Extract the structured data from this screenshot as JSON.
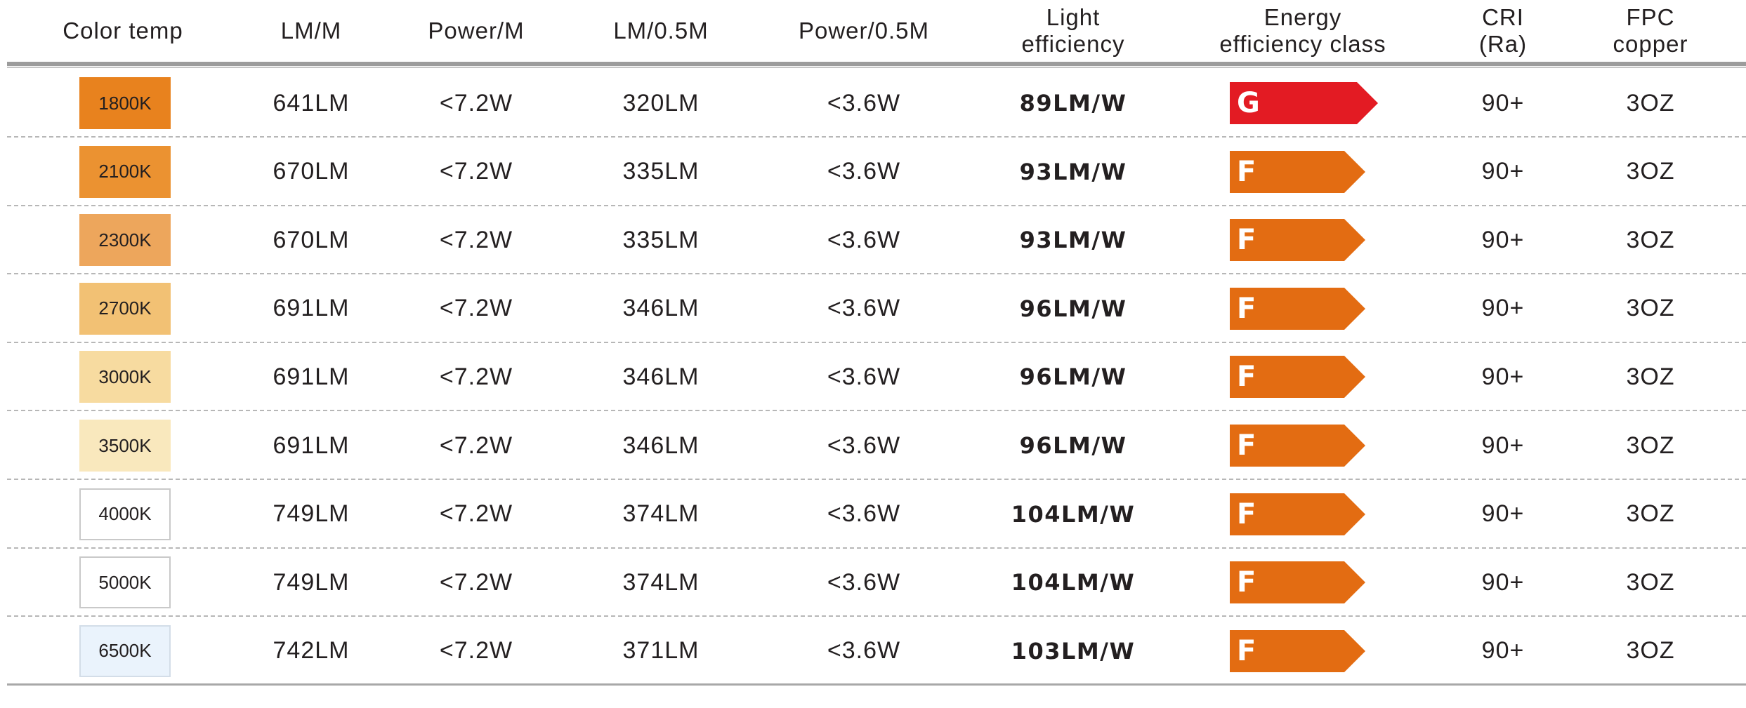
{
  "headers": {
    "color_temp": [
      "Color temp"
    ],
    "lm_m": [
      "LM/M"
    ],
    "power_m": [
      "Power/M"
    ],
    "lm_05m": [
      "LM/0.5M"
    ],
    "power_05m": [
      "Power/0.5M"
    ],
    "light_efficiency": [
      "Light",
      "efficiency"
    ],
    "energy_class": [
      "Energy",
      "efficiency class"
    ],
    "cri": [
      "CRI",
      "(Ra)"
    ],
    "fpc": [
      "FPC",
      "copper"
    ]
  },
  "rows": [
    {
      "temp": "1800K",
      "swatch": "#e8821e",
      "border": "",
      "lm_m": "641LM",
      "power_m": "<7.2W",
      "lm_05m": "320LM",
      "power_05m": "<3.6W",
      "efficiency": "89LM/W",
      "class": "G",
      "class_color": "#e31b23",
      "cri": "90+",
      "fpc": "3OZ"
    },
    {
      "temp": "2100K",
      "swatch": "#eb9231",
      "border": "",
      "lm_m": "670LM",
      "power_m": "<7.2W",
      "lm_05m": "335LM",
      "power_05m": "<3.6W",
      "efficiency": "93LM/W",
      "class": "F",
      "class_color": "#e36c12",
      "cri": "90+",
      "fpc": "3OZ"
    },
    {
      "temp": "2300K",
      "swatch": "#eda65c",
      "border": "",
      "lm_m": "670LM",
      "power_m": "<7.2W",
      "lm_05m": "335LM",
      "power_05m": "<3.6W",
      "efficiency": "93LM/W",
      "class": "F",
      "class_color": "#e36c12",
      "cri": "90+",
      "fpc": "3OZ"
    },
    {
      "temp": "2700K",
      "swatch": "#f2c174",
      "border": "",
      "lm_m": "691LM",
      "power_m": "<7.2W",
      "lm_05m": "346LM",
      "power_05m": "<3.6W",
      "efficiency": "96LM/W",
      "class": "F",
      "class_color": "#e36c12",
      "cri": "90+",
      "fpc": "3OZ"
    },
    {
      "temp": "3000K",
      "swatch": "#f7dba0",
      "border": "",
      "lm_m": "691LM",
      "power_m": "<7.2W",
      "lm_05m": "346LM",
      "power_05m": "<3.6W",
      "efficiency": "96LM/W",
      "class": "F",
      "class_color": "#e36c12",
      "cri": "90+",
      "fpc": "3OZ"
    },
    {
      "temp": "3500K",
      "swatch": "#f9e8bd",
      "border": "",
      "lm_m": "691LM",
      "power_m": "<7.2W",
      "lm_05m": "346LM",
      "power_05m": "<3.6W",
      "efficiency": "96LM/W",
      "class": "F",
      "class_color": "#e36c12",
      "cri": "90+",
      "fpc": "3OZ"
    },
    {
      "temp": "4000K",
      "swatch": "#ffffff",
      "border": "#c9c9c9",
      "lm_m": "749LM",
      "power_m": "<7.2W",
      "lm_05m": "374LM",
      "power_05m": "<3.6W",
      "efficiency": "104LM/W",
      "class": "F",
      "class_color": "#e36c12",
      "cri": "90+",
      "fpc": "3OZ"
    },
    {
      "temp": "5000K",
      "swatch": "#ffffff",
      "border": "#c9c9c9",
      "lm_m": "749LM",
      "power_m": "<7.2W",
      "lm_05m": "374LM",
      "power_05m": "<3.6W",
      "efficiency": "104LM/W",
      "class": "F",
      "class_color": "#e36c12",
      "cri": "90+",
      "fpc": "3OZ"
    },
    {
      "temp": "6500K",
      "swatch": "#eaf3fc",
      "border": "#d3dde8",
      "lm_m": "742LM",
      "power_m": "<7.2W",
      "lm_05m": "371LM",
      "power_05m": "<3.6W",
      "efficiency": "103LM/W",
      "class": "F",
      "class_color": "#e36c12",
      "cri": "90+",
      "fpc": "3OZ"
    }
  ]
}
